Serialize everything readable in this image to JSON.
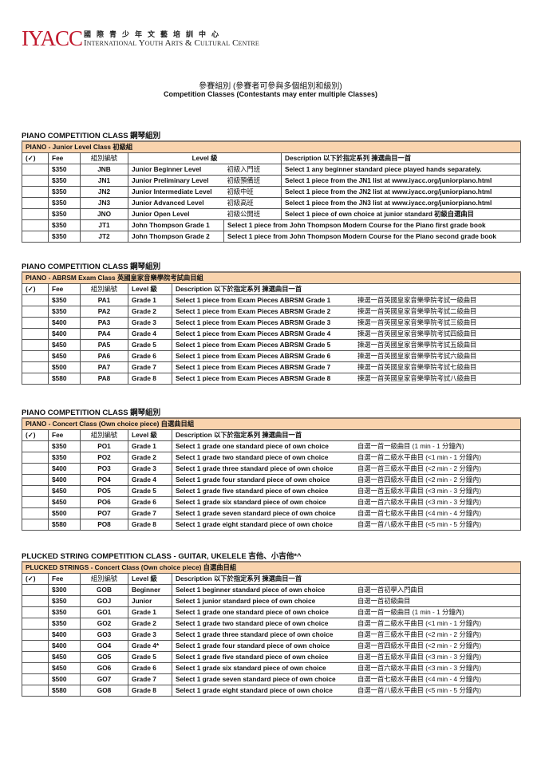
{
  "logo": {
    "mark": "IYACC",
    "zh": "國際青少年文藝培訓中心",
    "en": "International Youth Arts & Cultural Centre"
  },
  "title_zh": "參賽組別 (參賽者可參與多個組別和級別)",
  "title_en": "Competition Classes (Contestants may enter multiple Classes)",
  "sections": [
    {
      "title": "PIANO COMPETITION CLASS 鋼琴組別",
      "class_title": "PIANO - Junior Level Class 初級組",
      "headers": {
        "check": "(✓)",
        "fee": "Fee",
        "code": "組別編號",
        "level": "Level 級",
        "desc": "Description  以下於指定系列 揀選曲目一首"
      },
      "rows": [
        {
          "fee": "$350",
          "code": "JNB",
          "level": "Junior Beginner Level",
          "level_zh": "初級入門班",
          "desc": "Select 1 any beginner standard piece played hands separately."
        },
        {
          "fee": "$350",
          "code": "JN1",
          "level": "Junior Preliminary Level",
          "level_zh": "初級預備班",
          "desc": "Select 1 piece from the JN1 list at www.iyacc.org/juniorpiano.html"
        },
        {
          "fee": "$350",
          "code": "JN2",
          "level": "Junior Intermediate Level",
          "level_zh": "初級中班",
          "desc": "Select 1 piece from the JN2 list at www.iyacc.org/juniorpiano.html"
        },
        {
          "fee": "$350",
          "code": "JN3",
          "level": "Junior Advanced Level",
          "level_zh": "初級高班",
          "desc": "Select 1 piece from the JN3 list at www.iyacc.org/juniorpiano.html"
        },
        {
          "fee": "$350",
          "code": "JNO",
          "level": "Junior Open Level",
          "level_zh": "初級公開班",
          "desc": "Select 1 piece of own choice at junior standard 初級自選曲目"
        },
        {
          "fee": "$350",
          "code": "JT1",
          "level": "John Thompson Grade 1",
          "desc": "Select 1 piece from John Thompson Modern Course for the Piano first grade book"
        },
        {
          "fee": "$350",
          "code": "JT2",
          "level": "John Thompson Grade 2",
          "desc": "Select 1 piece from John Thompson Modern Course for the Piano second grade book"
        }
      ]
    },
    {
      "title": "PIANO COMPETITION CLASS 鋼琴組別",
      "class_title": "PIANO - ABRSM Exam Class 英國皇家音樂學院考試曲目組",
      "headers": {
        "check": "(✓)",
        "fee": "Fee",
        "code": "組別編號",
        "level": "Level 級",
        "desc": "Description 以下於指定系列 揀選曲目一首"
      },
      "rows": [
        {
          "fee": "$350",
          "code": "PA1",
          "level": "Grade 1",
          "desc": "Select 1 piece from Exam Pieces ABRSM Grade 1",
          "desc_zh": "揀選一首英國皇家音樂學院考試一級曲目"
        },
        {
          "fee": "$350",
          "code": "PA2",
          "level": "Grade 2",
          "desc": "Select 1 piece from Exam Pieces ABRSM Grade 2",
          "desc_zh": "揀選一首英國皇家音樂學院考試二級曲目"
        },
        {
          "fee": "$400",
          "code": "PA3",
          "level": "Grade 3",
          "desc": "Select 1 piece from Exam Pieces ABRSM Grade 3",
          "desc_zh": "揀選一首英國皇家音樂學院考試三級曲目"
        },
        {
          "fee": "$400",
          "code": "PA4",
          "level": "Grade 4",
          "desc": "Select 1 piece from Exam Pieces ABRSM Grade 4",
          "desc_zh": "揀選一首英國皇家音樂學院考試四級曲目"
        },
        {
          "fee": "$450",
          "code": "PA5",
          "level": "Grade 5",
          "desc": "Select 1 piece from Exam Pieces ABRSM Grade 5",
          "desc_zh": "揀選一首英國皇家音樂學院考試五級曲目"
        },
        {
          "fee": "$450",
          "code": "PA6",
          "level": "Grade 6",
          "desc": "Select 1 piece from Exam Pieces ABRSM Grade 6",
          "desc_zh": "揀選一首英國皇家音樂學院考試六級曲目"
        },
        {
          "fee": "$500",
          "code": "PA7",
          "level": "Grade 7",
          "desc": "Select 1 piece from Exam Pieces ABRSM Grade 7",
          "desc_zh": "揀選一首英國皇家音樂學院考試七級曲目"
        },
        {
          "fee": "$580",
          "code": "PA8",
          "level": "Grade 8",
          "desc": "Select 1 piece from Exam Pieces ABRSM Grade 8",
          "desc_zh": "揀選一首英國皇家音樂學院考試八級曲目"
        }
      ]
    },
    {
      "title": "PIANO COMPETITION CLASS 鋼琴組別",
      "class_title": "PIANO - Concert Class (Own choice piece) 自選曲目組",
      "headers": {
        "check": "(✓)",
        "fee": "Fee",
        "code": "組別編號",
        "level": "Level 級",
        "desc": "Description 以下於指定系列 揀選曲目一首"
      },
      "rows": [
        {
          "fee": "$350",
          "code": "PO1",
          "level": "Grade 1",
          "desc": "Select 1 grade one standard piece of own choice",
          "desc_zh": "自選一首一級曲目 (1 min - 1 分鐘內)"
        },
        {
          "fee": "$350",
          "code": "PO2",
          "level": "Grade 2",
          "desc": "Select 1 grade two standard piece of own choice",
          "desc_zh": "自選一首二級水平曲目 (<1 min - 1 分鐘內)"
        },
        {
          "fee": "$400",
          "code": "PO3",
          "level": "Grade 3",
          "desc": "Select 1 grade three standard piece of own choice",
          "desc_zh": "自選一首三級水平曲目 (<2 min - 2 分鐘內)"
        },
        {
          "fee": "$400",
          "code": "PO4",
          "level": "Grade 4",
          "desc": "Select 1 grade four standard piece of own choice",
          "desc_zh": "自選一首四級水平曲目 (<2 min - 2 分鐘內)"
        },
        {
          "fee": "$450",
          "code": "PO5",
          "level": "Grade 5",
          "desc": "Select 1 grade five standard piece of own choice",
          "desc_zh": "自選一首五級水平曲目 (<3 min - 3 分鐘內)"
        },
        {
          "fee": "$450",
          "code": "PO6",
          "level": "Grade 6",
          "desc": "Select 1 grade six standard piece of own choice",
          "desc_zh": "自選一首六級水平曲目 (<3 min - 3 分鐘內)"
        },
        {
          "fee": "$500",
          "code": "PO7",
          "level": "Grade 7",
          "desc": "Select 1 grade seven standard piece of own choice",
          "desc_zh": "自選一首七級水平曲目 (<4 min - 4 分鐘內)"
        },
        {
          "fee": "$580",
          "code": "PO8",
          "level": "Grade 8",
          "desc": "Select 1 grade eight standard piece of own choice",
          "desc_zh": "自選一首八級水平曲目 (<5 min - 5 分鐘內)"
        }
      ]
    },
    {
      "title": "PLUCKED STRING COMPETITION CLASS - GUITAR, UKELELE 吉他、小吉他*^",
      "class_title": "PLUCKED STRINGS - Concert Class (Own choice piece) 自選曲目組",
      "headers": {
        "check": "(✓)",
        "fee": "Fee",
        "code": "組別編號",
        "level": "Level 級",
        "desc": "Description 以下於指定系列 揀選曲目一首"
      },
      "rows": [
        {
          "fee": "$300",
          "code": "GOB",
          "level": "Beginner",
          "desc": "Select 1 beginner standard piece of own choice",
          "desc_zh": "自選一首初學入門曲目"
        },
        {
          "fee": "$350",
          "code": "GOJ",
          "level": "Junior",
          "desc": "Select 1 junior standard piece of own choice",
          "desc_zh": "自選一首初級曲目"
        },
        {
          "fee": "$350",
          "code": "GO1",
          "level": "Grade 1",
          "desc": "Select 1 grade one standard piece of own choice",
          "desc_zh": "自選一首一級曲目 (1 min - 1 分鐘內)"
        },
        {
          "fee": "$350",
          "code": "GO2",
          "level": "Grade 2",
          "desc": "Select 1 grade two standard piece of own choice",
          "desc_zh": "自選一首二級水平曲目 (<1 min - 1 分鐘內)"
        },
        {
          "fee": "$400",
          "code": "GO3",
          "level": "Grade 3",
          "desc": "Select 1 grade three standard piece of own choice",
          "desc_zh": "自選一首三級水平曲目 (<2 min - 2 分鐘內)"
        },
        {
          "fee": "$400",
          "code": "GO4",
          "level": "Grade 4*",
          "desc": "Select 1 grade four standard piece of own choice",
          "desc_zh": "自選一首四級水平曲目 (<2 min - 2 分鐘內)"
        },
        {
          "fee": "$450",
          "code": "GO5",
          "level": "Grade 5",
          "desc": "Select 1 grade five standard piece of own choice",
          "desc_zh": "自選一首五級水平曲目 (<3 min - 3 分鐘內)"
        },
        {
          "fee": "$450",
          "code": "GO6",
          "level": "Grade 6",
          "desc": "Select 1 grade six standard piece of own choice",
          "desc_zh": "自選一首六級水平曲目 (<3 min - 3 分鐘內)"
        },
        {
          "fee": "$500",
          "code": "GO7",
          "level": "Grade 7",
          "desc": "Select 1 grade seven standard piece of own choice",
          "desc_zh": "自選一首七級水平曲目 (<4 min - 4 分鐘內)"
        },
        {
          "fee": "$580",
          "code": "GO8",
          "level": "Grade 8",
          "desc": "Select 1 grade eight standard piece of own choice",
          "desc_zh": "自選一首八級水平曲目 (<5 min - 5 分鐘內)"
        }
      ]
    }
  ]
}
